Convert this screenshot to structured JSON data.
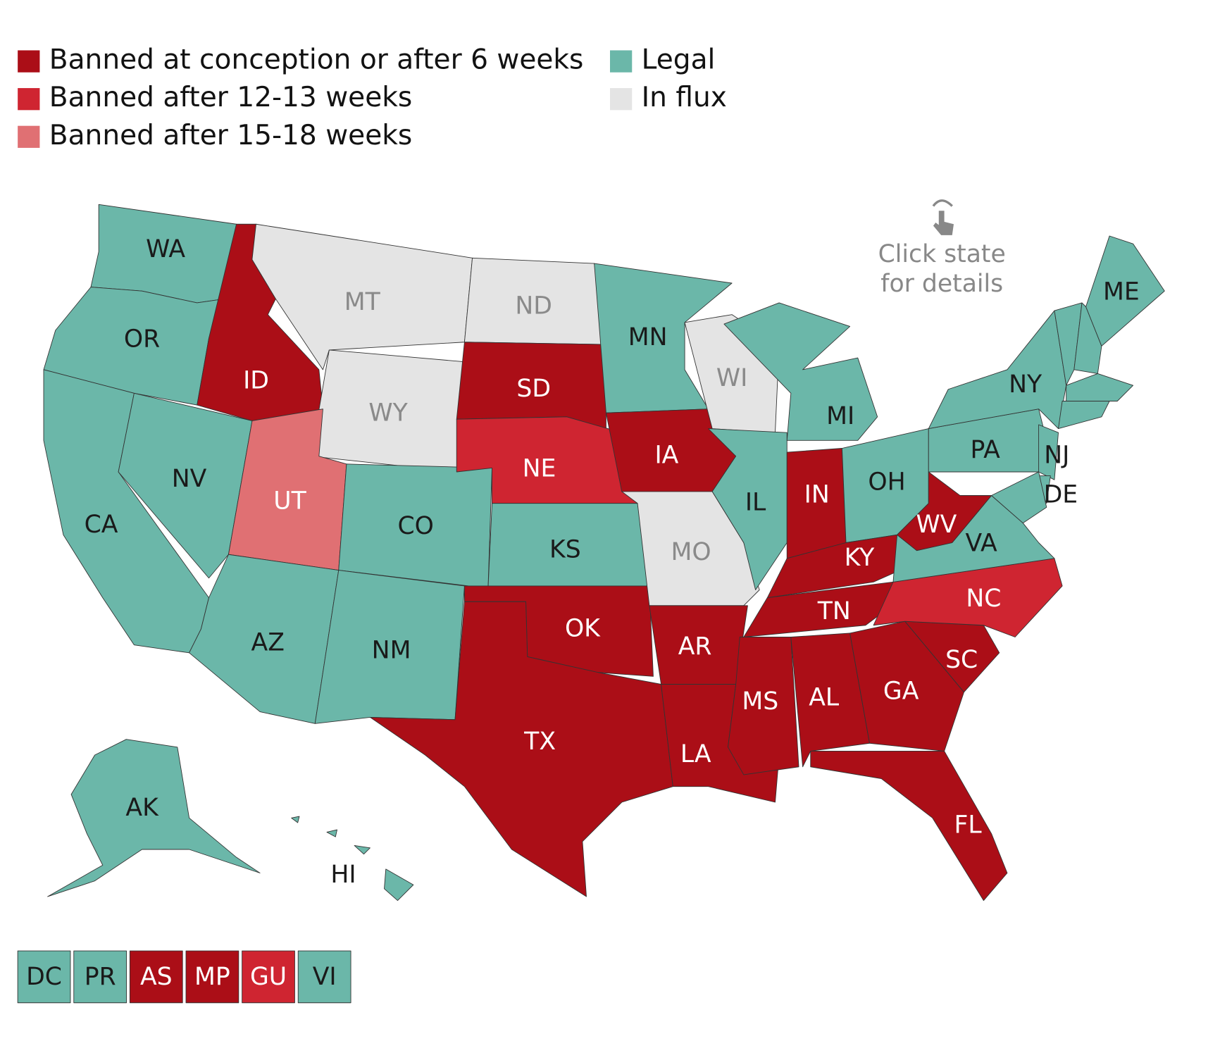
{
  "legend": [
    {
      "label": "Banned at conception or after 6 weeks",
      "color": "#ab0e17"
    },
    {
      "label": "Banned after 12-13 weeks",
      "color": "#cf2531"
    },
    {
      "label": "Banned after 15-18 weeks",
      "color": "#e07073"
    },
    {
      "label": "Legal",
      "color": "#6bb7a9"
    },
    {
      "label": "In flux",
      "color": "#e4e4e4"
    }
  ],
  "hint": [
    "Click state",
    "for details"
  ],
  "states": [
    {
      "label": "WA",
      "color": "#6bb7a9"
    },
    {
      "label": "OR",
      "color": "#6bb7a9"
    },
    {
      "label": "CA",
      "color": "#6bb7a9"
    },
    {
      "label": "NV",
      "color": "#6bb7a9"
    },
    {
      "label": "ID",
      "color": "#ab0e17"
    },
    {
      "label": "MT",
      "color": "#e4e4e4"
    },
    {
      "label": "WY",
      "color": "#e4e4e4"
    },
    {
      "label": "UT",
      "color": "#e07073"
    },
    {
      "label": "CO",
      "color": "#6bb7a9"
    },
    {
      "label": "AZ",
      "color": "#6bb7a9"
    },
    {
      "label": "NM",
      "color": "#6bb7a9"
    },
    {
      "label": "ND",
      "color": "#e4e4e4"
    },
    {
      "label": "SD",
      "color": "#ab0e17"
    },
    {
      "label": "NE",
      "color": "#cf2531"
    },
    {
      "label": "KS",
      "color": "#6bb7a9"
    },
    {
      "label": "OK",
      "color": "#ab0e17"
    },
    {
      "label": "TX",
      "color": "#ab0e17"
    },
    {
      "label": "MN",
      "color": "#6bb7a9"
    },
    {
      "label": "IA",
      "color": "#ab0e17"
    },
    {
      "label": "MO",
      "color": "#e4e4e4"
    },
    {
      "label": "AR",
      "color": "#ab0e17"
    },
    {
      "label": "LA",
      "color": "#ab0e17"
    },
    {
      "label": "WI",
      "color": "#e4e4e4"
    },
    {
      "label": "IL",
      "color": "#6bb7a9"
    },
    {
      "label": "MI",
      "color": "#6bb7a9"
    },
    {
      "label": "IN",
      "color": "#ab0e17"
    },
    {
      "label": "OH",
      "color": "#6bb7a9"
    },
    {
      "label": "KY",
      "color": "#ab0e17"
    },
    {
      "label": "TN",
      "color": "#ab0e17"
    },
    {
      "label": "MS",
      "color": "#ab0e17"
    },
    {
      "label": "AL",
      "color": "#ab0e17"
    },
    {
      "label": "GA",
      "color": "#ab0e17"
    },
    {
      "label": "FL",
      "color": "#ab0e17"
    },
    {
      "label": "SC",
      "color": "#ab0e17"
    },
    {
      "label": "NC",
      "color": "#cf2531"
    },
    {
      "label": "VA",
      "color": "#6bb7a9"
    },
    {
      "label": "WV",
      "color": "#ab0e17"
    },
    {
      "label": "PA",
      "color": "#6bb7a9"
    },
    {
      "label": "NY",
      "color": "#6bb7a9"
    },
    {
      "label": "NJ",
      "color": "#6bb7a9"
    },
    {
      "label": "DE",
      "color": "#6bb7a9"
    },
    {
      "label": null,
      "color": "#6bb7a9"
    },
    {
      "label": null,
      "color": "#6bb7a9"
    },
    {
      "label": null,
      "color": "#6bb7a9"
    },
    {
      "label": null,
      "color": "#6bb7a9"
    },
    {
      "label": null,
      "color": "#6bb7a9"
    },
    {
      "label": "ME",
      "color": "#6bb7a9"
    },
    {
      "label": "AK",
      "color": "#6bb7a9"
    },
    {
      "label": "HI",
      "color": "#6bb7a9"
    }
  ],
  "territories": [
    {
      "label": "DC",
      "color": "#6bb7a9"
    },
    {
      "label": "PR",
      "color": "#6bb7a9"
    },
    {
      "label": "AS",
      "color": "#ab0e17"
    },
    {
      "label": "MP",
      "color": "#ab0e17"
    },
    {
      "label": "GU",
      "color": "#cf2531"
    },
    {
      "label": "VI",
      "color": "#6bb7a9"
    }
  ]
}
